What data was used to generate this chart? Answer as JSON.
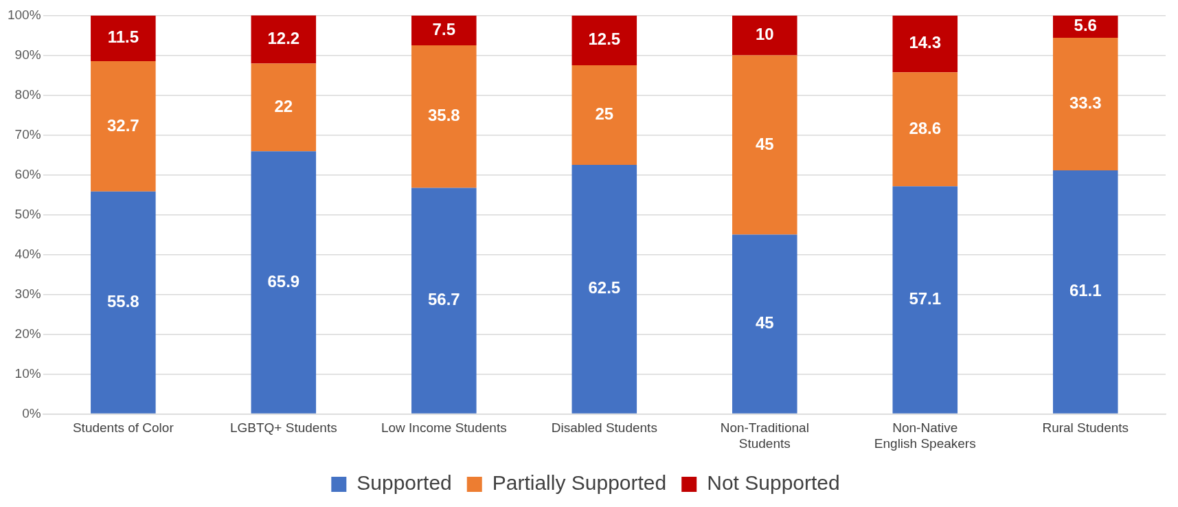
{
  "chart_data": {
    "type": "bar",
    "stacked": true,
    "categories": [
      "Students of Color",
      "LGBTQ+ Students",
      "Low Income Students",
      "Disabled Students",
      "Non-Traditional Students",
      "Non-Native English Speakers",
      "Rural Students"
    ],
    "series": [
      {
        "name": "Supported",
        "color": "#4472c4",
        "values": [
          55.8,
          65.9,
          56.7,
          62.5,
          45,
          57.1,
          61.1
        ]
      },
      {
        "name": "Partially Supported",
        "color": "#ed7d31",
        "values": [
          32.7,
          22,
          35.8,
          25,
          45,
          28.6,
          33.3
        ]
      },
      {
        "name": "Not Supported",
        "color": "#c00000",
        "values": [
          11.5,
          12.2,
          7.5,
          12.5,
          10,
          14.3,
          5.6
        ]
      }
    ],
    "ylim": [
      0,
      100
    ],
    "yticks": [
      {
        "value": 0,
        "label": "0%"
      },
      {
        "value": 10,
        "label": "10%"
      },
      {
        "value": 20,
        "label": "20%"
      },
      {
        "value": 30,
        "label": "30%"
      },
      {
        "value": 40,
        "label": "40%"
      },
      {
        "value": 50,
        "label": "50%"
      },
      {
        "value": 60,
        "label": "60%"
      },
      {
        "value": 70,
        "label": "70%"
      },
      {
        "value": 80,
        "label": "80%"
      },
      {
        "value": 90,
        "label": "90%"
      },
      {
        "value": 100,
        "label": "100%"
      }
    ],
    "grid": "y",
    "legend": "bottom",
    "data_labels": true
  }
}
